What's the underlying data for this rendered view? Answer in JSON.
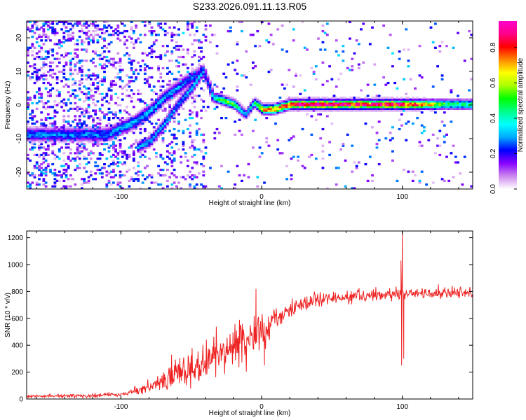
{
  "title": "S233.2026.091.11.13.R05",
  "chart_data": [
    {
      "type": "heatmap",
      "title": "S233.2026.091.11.13.R05",
      "xlabel": "Height of straight line (km)",
      "ylabel": "Frequency (Hz)",
      "xlim": [
        -167,
        150
      ],
      "ylim": [
        -25,
        25
      ],
      "xticks": [
        -100,
        0,
        100
      ],
      "xtick_labels": [
        "-100",
        "0",
        "100"
      ],
      "yticks": [
        -20,
        -10,
        0,
        10,
        20
      ],
      "ytick_labels": [
        "-20",
        "-10",
        "0",
        "10",
        "20"
      ],
      "colorbar": {
        "label": "Normalized spectral amplitude",
        "range": [
          0,
          0.95
        ],
        "ticks": [
          0.0,
          0.2,
          0.4,
          0.6,
          0.8
        ],
        "tick_labels": [
          "0.0",
          "0.2",
          "0.4",
          "0.6",
          "0.8"
        ],
        "colormap": [
          "#ffffff",
          "#cc88ee",
          "#8800ff",
          "#0000ff",
          "#00aaff",
          "#00ffff",
          "#00ff88",
          "#00ff00",
          "#aaff00",
          "#ffff00",
          "#ff8800",
          "#ff0000",
          "#ff0088",
          "#ff00cc"
        ]
      },
      "ridge": [
        {
          "x": -110,
          "f": -9,
          "a": 0.28
        },
        {
          "x": -100,
          "f": -7,
          "a": 0.3
        },
        {
          "x": -90,
          "f": -5,
          "a": 0.3
        },
        {
          "x": -80,
          "f": -2,
          "a": 0.32
        },
        {
          "x": -70,
          "f": 2,
          "a": 0.3
        },
        {
          "x": -60,
          "f": 5,
          "a": 0.3
        },
        {
          "x": -50,
          "f": 8,
          "a": 0.25
        },
        {
          "x": -42,
          "f": 10,
          "a": 0.2
        },
        {
          "x": -35,
          "f": 2,
          "a": 0.35
        },
        {
          "x": -30,
          "f": 1.5,
          "a": 0.55
        },
        {
          "x": -20,
          "f": 0,
          "a": 0.5
        },
        {
          "x": -12,
          "f": -3,
          "a": 0.3
        },
        {
          "x": -6,
          "f": 0.5,
          "a": 0.45
        },
        {
          "x": 0,
          "f": -1.5,
          "a": 0.75
        },
        {
          "x": 8,
          "f": -1.5,
          "a": 0.8
        },
        {
          "x": 20,
          "f": 0,
          "a": 0.85
        },
        {
          "x": 40,
          "f": 0,
          "a": 0.95
        },
        {
          "x": 60,
          "f": 0,
          "a": 0.9
        },
        {
          "x": 80,
          "f": 0,
          "a": 0.85
        },
        {
          "x": 95,
          "f": 0,
          "a": 0.9
        },
        {
          "x": 110,
          "f": 0,
          "a": 0.8
        },
        {
          "x": 130,
          "f": 0,
          "a": 0.5
        },
        {
          "x": 150,
          "f": 0,
          "a": 0.45
        }
      ],
      "secondary_ridge": [
        {
          "x": -90,
          "f": -13,
          "a": 0.3
        },
        {
          "x": -80,
          "f": -11,
          "a": 0.3
        },
        {
          "x": -70,
          "f": -6,
          "a": 0.32
        },
        {
          "x": -60,
          "f": 0,
          "a": 0.3
        },
        {
          "x": -50,
          "f": 5,
          "a": 0.35
        },
        {
          "x": -42,
          "f": 10,
          "a": 0.3
        }
      ]
    },
    {
      "type": "line",
      "series_name": "SNR",
      "xlabel": "Height of straight line (km)",
      "ylabel": "SNR (10 * v/v)",
      "xlim": [
        -167,
        150
      ],
      "ylim": [
        0,
        1250
      ],
      "xticks": [
        -100,
        0,
        100
      ],
      "xtick_labels": [
        "-100",
        "0",
        "100"
      ],
      "yticks": [
        0,
        200,
        400,
        600,
        800,
        1000,
        1200
      ],
      "ytick_labels": [
        "0",
        "200",
        "400",
        "600",
        "800",
        "1000",
        "1200"
      ],
      "color": "#ee2222",
      "trend": [
        {
          "x": -167,
          "y": 20
        },
        {
          "x": -120,
          "y": 25
        },
        {
          "x": -100,
          "y": 35
        },
        {
          "x": -90,
          "y": 55
        },
        {
          "x": -80,
          "y": 90
        },
        {
          "x": -70,
          "y": 140
        },
        {
          "x": -60,
          "y": 190
        },
        {
          "x": -50,
          "y": 240
        },
        {
          "x": -40,
          "y": 290
        },
        {
          "x": -30,
          "y": 340
        },
        {
          "x": -20,
          "y": 390
        },
        {
          "x": -10,
          "y": 440
        },
        {
          "x": 0,
          "y": 500
        },
        {
          "x": 10,
          "y": 590
        },
        {
          "x": 20,
          "y": 670
        },
        {
          "x": 30,
          "y": 720
        },
        {
          "x": 50,
          "y": 750
        },
        {
          "x": 70,
          "y": 770
        },
        {
          "x": 90,
          "y": 780
        },
        {
          "x": 110,
          "y": 780
        },
        {
          "x": 130,
          "y": 785
        },
        {
          "x": 150,
          "y": 790
        }
      ],
      "noise": [
        {
          "x": -167,
          "amp": 15
        },
        {
          "x": -100,
          "amp": 20
        },
        {
          "x": -80,
          "amp": 60
        },
        {
          "x": -50,
          "amp": 180
        },
        {
          "x": -20,
          "amp": 200
        },
        {
          "x": 0,
          "amp": 160
        },
        {
          "x": 20,
          "amp": 90
        },
        {
          "x": 50,
          "amp": 60
        },
        {
          "x": 150,
          "amp": 55
        }
      ],
      "annotated_points": [
        {
          "x": -64,
          "y": 330
        },
        {
          "x": -4,
          "y": 820
        },
        {
          "x": 2,
          "y": 250
        },
        {
          "x": 99,
          "y": 1030
        },
        {
          "x": 99.5,
          "y": 250
        },
        {
          "x": 100,
          "y": 1250
        },
        {
          "x": 101,
          "y": 300
        }
      ]
    }
  ]
}
